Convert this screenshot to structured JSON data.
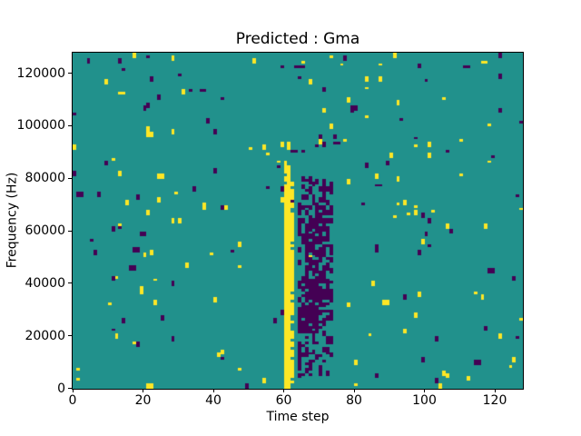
{
  "figure": {
    "title": "Predicted : Gma"
  },
  "chart_data": {
    "type": "heatmap",
    "title": "Predicted : Gma",
    "xlabel": "Time step",
    "ylabel": "Frequency (Hz)",
    "x_range": [
      0,
      128
    ],
    "y_range_hz": [
      0,
      128000
    ],
    "x_ticks": [
      0,
      20,
      40,
      60,
      80,
      100,
      120
    ],
    "y_ticks": [
      0,
      20000,
      40000,
      60000,
      80000,
      100000,
      120000
    ],
    "grid": {
      "cols": 128,
      "rows": 128,
      "hz_per_row": 1000
    },
    "colormap": "viridis",
    "palette": {
      "low": "#440154",
      "mid": "#21918c",
      "high": "#fde725"
    },
    "background_value": "mid",
    "features": [
      {
        "name": "yellow-activity-band",
        "color": "high",
        "t": [
          60,
          61
        ],
        "f": [
          0,
          84
        ],
        "fill": 0.97
      },
      {
        "name": "yellow-band-edge",
        "color": "high",
        "t": [
          62,
          62
        ],
        "f": [
          2,
          80
        ],
        "fill": 0.5
      },
      {
        "name": "yellow-band-top-fade",
        "color": "high",
        "t": [
          59,
          63
        ],
        "f": [
          84,
          93
        ],
        "fill": 0.1
      },
      {
        "name": "purple-response-band",
        "color": "low",
        "t": [
          64,
          73
        ],
        "f": [
          4,
          80
        ],
        "fill": 0.28
      },
      {
        "name": "purple-band-core",
        "color": "low",
        "t": [
          66,
          71
        ],
        "f": [
          28,
          64
        ],
        "fill": 0.5
      },
      {
        "name": "purple-blob-low-freq",
        "color": "low",
        "t": [
          64,
          69
        ],
        "f": [
          21,
          30
        ],
        "fill": 0.85
      }
    ],
    "noise": {
      "seed": 7,
      "points": [
        {
          "color": "high",
          "count": 115
        },
        {
          "color": "low",
          "count": 100
        }
      ],
      "tall_prob": 0.6,
      "wide_prob": 0.1
    }
  }
}
